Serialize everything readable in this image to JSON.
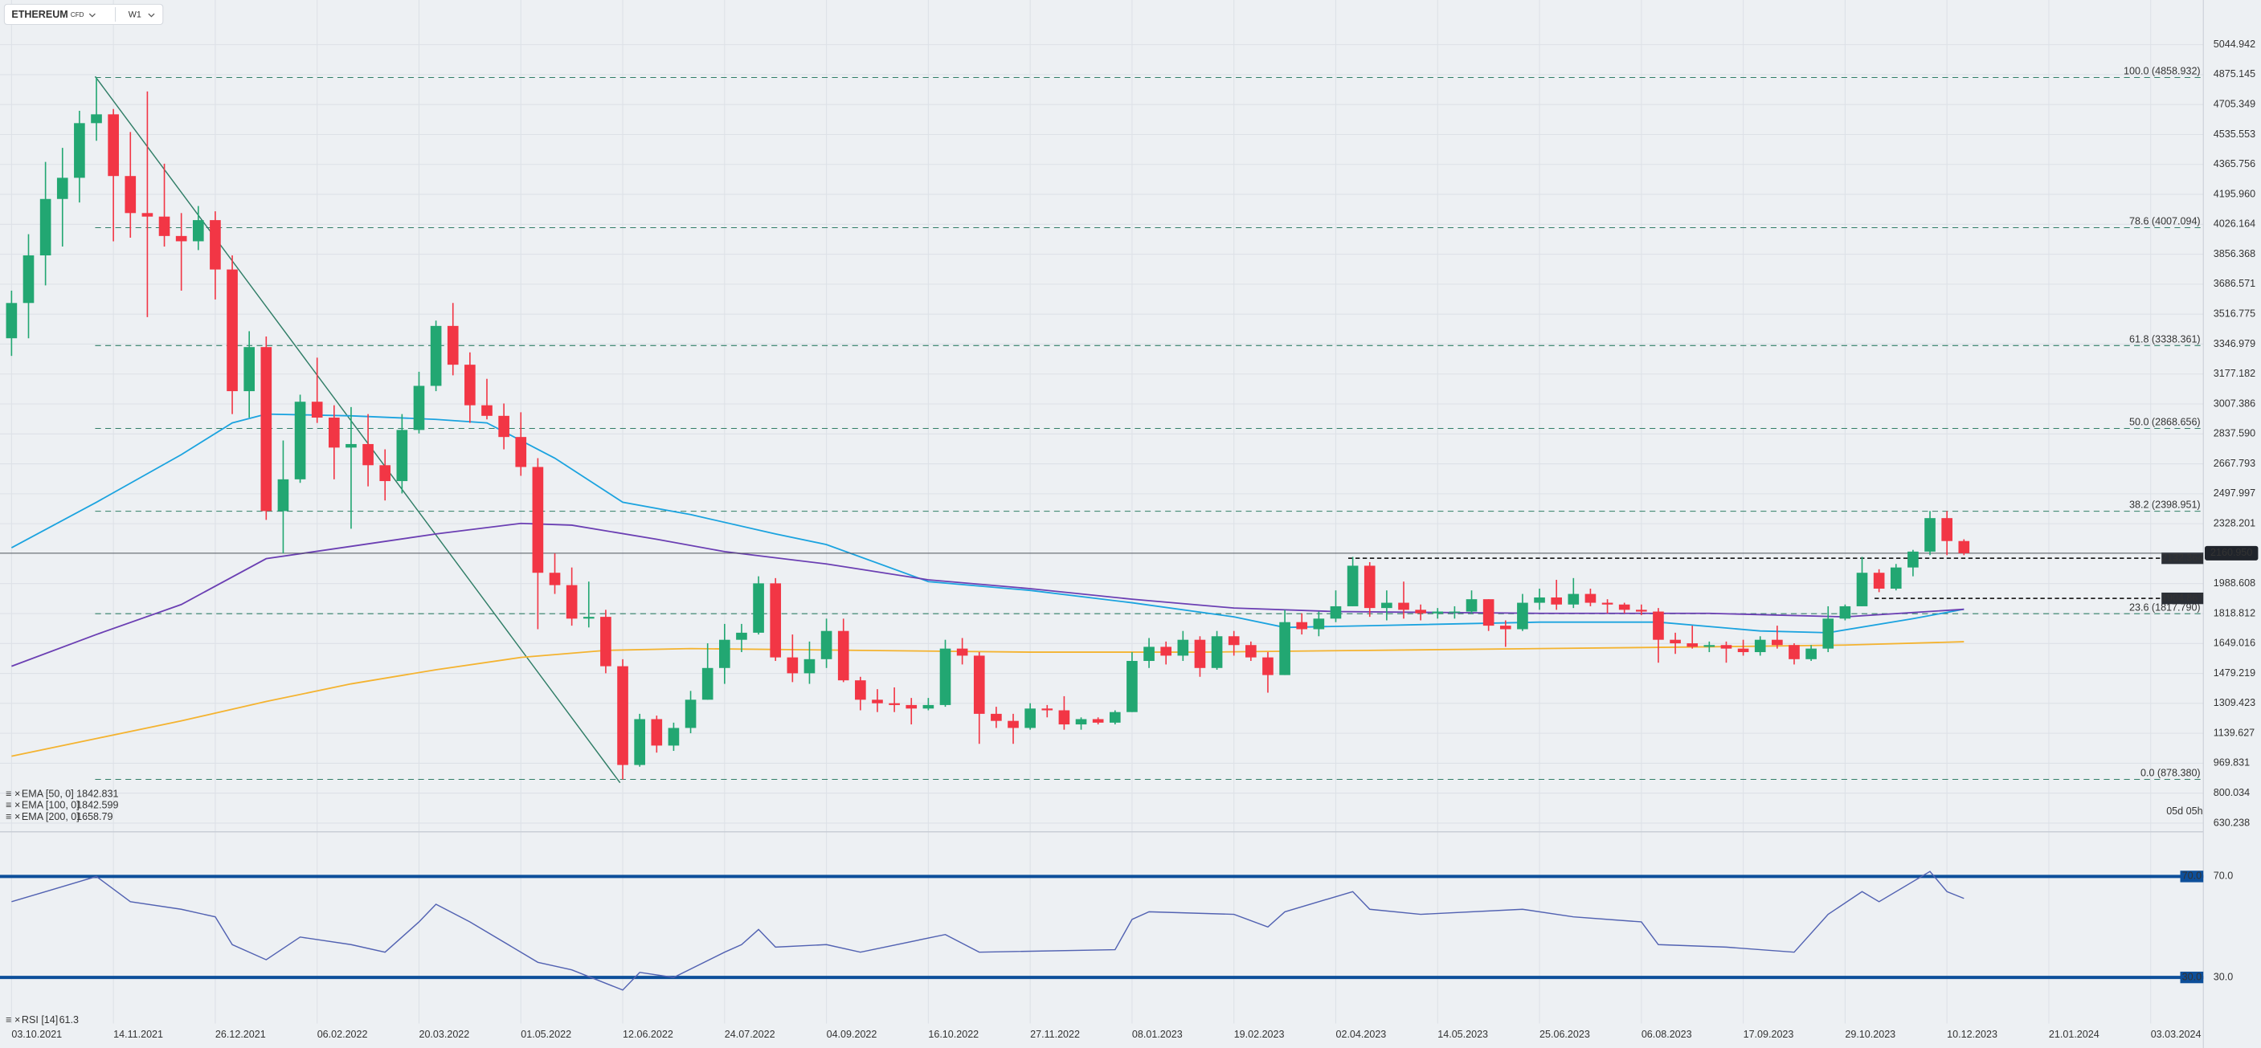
{
  "header": {
    "symbol": "ETHEREUM",
    "sub": "CFD",
    "timeframe": "W1"
  },
  "chart_data": [
    {
      "type": "candlestick",
      "up_color": "#22a772",
      "down_color": "#f23645",
      "open": [
        3380,
        3580,
        3850,
        4170,
        4290,
        4600,
        4650,
        4300,
        4090,
        4070,
        3960,
        3930,
        4050,
        3770,
        3080,
        3330,
        2400,
        2580,
        3020,
        2930,
        2760,
        2780,
        2660,
        2570,
        2860,
        3110,
        3450,
        3230,
        3000,
        2940,
        2820,
        2650,
        2050,
        1980,
        1790,
        1800,
        1520,
        960,
        1220,
        1070,
        1170,
        1330,
        1510,
        1670,
        1710,
        1990,
        1570,
        1480,
        1560,
        1720,
        1440,
        1330,
        1310,
        1300,
        1280,
        1300,
        1620,
        1580,
        1250,
        1210,
        1170,
        1280,
        1270,
        1190,
        1220,
        1200,
        1260,
        1550,
        1630,
        1580,
        1670,
        1510,
        1690,
        1640,
        1570,
        1470,
        1770,
        1730,
        1790,
        1860,
        2090,
        1850,
        1880,
        1840,
        1820,
        1830,
        1830,
        1900,
        1750,
        1730,
        1880,
        1910,
        1870,
        1930,
        1880,
        1870,
        1840,
        1830,
        1670,
        1650,
        1630,
        1640,
        1620,
        1600,
        1670,
        1640,
        1560,
        1620,
        1790,
        1860,
        2050,
        1960,
        2080,
        2170,
        2360,
        2230
      ],
      "high": [
        3650,
        3970,
        4380,
        4460,
        4670,
        4859,
        4680,
        4550,
        4780,
        4370,
        4090,
        4130,
        4100,
        3850,
        3420,
        3390,
        2800,
        3060,
        3270,
        3000,
        2990,
        2950,
        2750,
        2950,
        3190,
        3480,
        3580,
        3300,
        3150,
        3010,
        2960,
        2700,
        2160,
        2080,
        2000,
        1840,
        1560,
        1250,
        1240,
        1200,
        1380,
        1650,
        1760,
        1760,
        2030,
        2020,
        1700,
        1660,
        1790,
        1790,
        1460,
        1390,
        1400,
        1340,
        1340,
        1670,
        1680,
        1600,
        1290,
        1250,
        1310,
        1300,
        1350,
        1230,
        1230,
        1270,
        1600,
        1680,
        1660,
        1720,
        1690,
        1720,
        1720,
        1660,
        1600,
        1840,
        1820,
        1830,
        1950,
        2140,
        2110,
        1950,
        2000,
        1870,
        1850,
        1860,
        1950,
        1900,
        1780,
        1930,
        1960,
        2010,
        2020,
        1960,
        1900,
        1880,
        1870,
        1850,
        1710,
        1750,
        1660,
        1660,
        1670,
        1690,
        1750,
        1650,
        1640,
        1860,
        1870,
        2140,
        2070,
        2100,
        2180,
        2400,
        2400,
        2240
      ],
      "low": [
        3280,
        3380,
        3680,
        3900,
        4150,
        4500,
        3930,
        3950,
        3500,
        3900,
        3650,
        3880,
        3600,
        2950,
        2930,
        2350,
        2160,
        2560,
        2900,
        2580,
        2300,
        2540,
        2460,
        2500,
        2840,
        3080,
        3170,
        2900,
        2920,
        2750,
        2600,
        1730,
        1930,
        1750,
        1740,
        1480,
        878,
        950,
        1030,
        1040,
        1140,
        1330,
        1420,
        1600,
        1700,
        1550,
        1430,
        1420,
        1510,
        1430,
        1270,
        1260,
        1260,
        1190,
        1270,
        1290,
        1530,
        1080,
        1170,
        1080,
        1160,
        1230,
        1160,
        1160,
        1190,
        1190,
        1260,
        1510,
        1530,
        1550,
        1460,
        1500,
        1580,
        1550,
        1370,
        1470,
        1700,
        1690,
        1770,
        1860,
        1800,
        1780,
        1790,
        1780,
        1790,
        1790,
        1820,
        1720,
        1630,
        1720,
        1840,
        1840,
        1850,
        1860,
        1820,
        1820,
        1810,
        1540,
        1590,
        1620,
        1600,
        1540,
        1580,
        1580,
        1620,
        1530,
        1550,
        1600,
        1780,
        1860,
        1940,
        1950,
        2030,
        2150,
        2150,
        2150
      ],
      "close": [
        3580,
        3850,
        4170,
        4290,
        4600,
        4650,
        4300,
        4090,
        4070,
        3960,
        3930,
        4050,
        3770,
        3080,
        3330,
        2400,
        2580,
        3020,
        2930,
        2760,
        2780,
        2660,
        2570,
        2860,
        3110,
        3450,
        3230,
        3000,
        2940,
        2820,
        2650,
        2050,
        1980,
        1790,
        1800,
        1520,
        960,
        1220,
        1070,
        1170,
        1330,
        1510,
        1670,
        1710,
        1990,
        1570,
        1480,
        1560,
        1720,
        1440,
        1330,
        1310,
        1300,
        1280,
        1300,
        1620,
        1580,
        1250,
        1210,
        1170,
        1280,
        1270,
        1190,
        1220,
        1200,
        1260,
        1550,
        1630,
        1580,
        1670,
        1510,
        1690,
        1640,
        1570,
        1470,
        1770,
        1730,
        1790,
        1860,
        2090,
        1850,
        1880,
        1840,
        1820,
        1830,
        1830,
        1900,
        1750,
        1730,
        1880,
        1910,
        1870,
        1930,
        1880,
        1870,
        1840,
        1830,
        1670,
        1650,
        1630,
        1640,
        1620,
        1600,
        1670,
        1640,
        1560,
        1620,
        1790,
        1860,
        2050,
        1960,
        2080,
        2170,
        2360,
        2230,
        2160.95
      ],
      "series": [
        {
          "name": "EMA [50, 0]",
          "last_value": 1842.831,
          "color": "#1ba3df",
          "x": [
            0,
            5,
            10,
            13,
            15,
            20,
            25,
            28,
            32,
            36,
            40,
            45,
            48,
            54,
            60,
            66,
            72,
            75,
            80,
            90,
            97,
            103,
            107,
            112,
            115
          ],
          "values": [
            2192,
            2450,
            2720,
            2900,
            2950,
            2940,
            2920,
            2900,
            2700,
            2450,
            2380,
            2270,
            2210,
            2000,
            1950,
            1880,
            1800,
            1740,
            1750,
            1770,
            1770,
            1720,
            1710,
            1790,
            1843
          ]
        },
        {
          "name": "EMA [100, 0]",
          "last_value": 1842.599,
          "color": "#6b3fb3",
          "x": [
            0,
            5,
            10,
            15,
            20,
            25,
            30,
            33,
            38,
            42,
            48,
            54,
            60,
            66,
            72,
            78,
            90,
            100,
            108,
            115
          ],
          "values": [
            1520,
            1700,
            1870,
            2130,
            2200,
            2270,
            2330,
            2320,
            2240,
            2170,
            2100,
            2010,
            1960,
            1900,
            1850,
            1830,
            1820,
            1820,
            1800,
            1843
          ]
        },
        {
          "name": "EMA [200, 0]",
          "last_value": 1658.79,
          "color": "#f4b330",
          "x": [
            0,
            5,
            10,
            15,
            20,
            25,
            30,
            35,
            40,
            50,
            60,
            70,
            80,
            90,
            100,
            108,
            115
          ],
          "values": [
            1010,
            1110,
            1210,
            1320,
            1420,
            1500,
            1570,
            1610,
            1620,
            1610,
            1600,
            1600,
            1610,
            1620,
            1630,
            1640,
            1659
          ]
        }
      ],
      "fib_levels": [
        {
          "value": 4858.932,
          "label": "100.0 (4858.932)"
        },
        {
          "value": 4007.094,
          "label": "78.6 (4007.094)"
        },
        {
          "value": 3338.361,
          "label": "61.8 (3338.361)"
        },
        {
          "value": 2868.656,
          "label": "50.0 (2868.656)"
        },
        {
          "value": 2398.951,
          "label": "38.2 (2398.951)"
        },
        {
          "value": 1817.79,
          "label": "23.6 (1817.790)"
        },
        {
          "value": 878.38,
          "label": "0.0 (878.380)"
        }
      ],
      "price_lines": [
        2132.364,
        1904.867
      ],
      "current_price": {
        "value": 2160.95,
        "label": "2160.950"
      },
      "countdown": "05d 05h",
      "xlim": [
        -0.68,
        129.1
      ],
      "xticks": [
        {
          "value": 0,
          "label": "03.10.2021"
        },
        {
          "value": 6,
          "label": "14.11.2021"
        },
        {
          "value": 12,
          "label": "26.12.2021"
        },
        {
          "value": 18,
          "label": "06.02.2022"
        },
        {
          "value": 24,
          "label": "20.03.2022"
        },
        {
          "value": 30,
          "label": "01.05.2022"
        },
        {
          "value": 36,
          "label": "12.06.2022"
        },
        {
          "value": 42,
          "label": "24.07.2022"
        },
        {
          "value": 48,
          "label": "04.09.2022"
        },
        {
          "value": 54,
          "label": "16.10.2022"
        },
        {
          "value": 60,
          "label": "27.11.2022"
        },
        {
          "value": 66,
          "label": "08.01.2023"
        },
        {
          "value": 72,
          "label": "19.02.2023"
        },
        {
          "value": 78,
          "label": "02.04.2023"
        },
        {
          "value": 84,
          "label": "14.05.2023"
        },
        {
          "value": 90,
          "label": "25.06.2023"
        },
        {
          "value": 96,
          "label": "06.08.2023"
        },
        {
          "value": 102,
          "label": "17.09.2023"
        },
        {
          "value": 108,
          "label": "29.10.2023"
        },
        {
          "value": 114,
          "label": "10.12.2023"
        },
        {
          "value": 120,
          "label": "21.01.2024"
        },
        {
          "value": 126,
          "label": "03.03.2024"
        }
      ],
      "ylim": [
        597.5,
        5216.6
      ],
      "yticks": [
        5044.942,
        4875.145,
        4705.349,
        4535.553,
        4365.756,
        {
          "value": 4195.96,
          "label": "4195.960"
        },
        4026.164,
        3856.368,
        3686.571,
        3516.775,
        3346.979,
        3177.182,
        3007.386,
        {
          "value": 2837.59,
          "label": "2837.590"
        },
        2667.793,
        2497.997,
        2328.201,
        1988.608,
        1818.812,
        1649.016,
        1479.219,
        1309.423,
        1139.627,
        969.831,
        800.034,
        630.238
      ],
      "grid": true
    },
    {
      "type": "line",
      "name": "RSI [14]",
      "last_value": 61.3,
      "color": "#5262b2",
      "level_color": "#0d4f9a",
      "x": [
        0,
        2,
        5,
        7,
        10,
        12,
        13,
        15,
        17,
        20,
        22,
        24,
        25,
        27,
        31,
        33,
        36,
        37,
        39,
        42,
        43,
        44,
        45,
        48,
        50,
        55,
        57,
        65,
        66,
        67,
        72,
        74,
        75,
        79,
        80,
        83,
        89,
        92,
        96,
        97,
        101,
        105,
        107,
        109,
        110,
        113,
        114,
        115
      ],
      "values": [
        60,
        64,
        70,
        60,
        57,
        54,
        43,
        37,
        46,
        43,
        40,
        52,
        59,
        52,
        36,
        33,
        25,
        32,
        30,
        40,
        43,
        49,
        42,
        43,
        40,
        47,
        40,
        41,
        53,
        56,
        55,
        50,
        56,
        64,
        57,
        55,
        57,
        54,
        52,
        43,
        42,
        40,
        55,
        64,
        60,
        72,
        64,
        61.3
      ],
      "ylim": [
        14.6,
        86
      ],
      "yticks": [
        {
          "value": 70,
          "label": "70.0"
        },
        {
          "value": 30,
          "label": "30.0"
        }
      ]
    }
  ]
}
